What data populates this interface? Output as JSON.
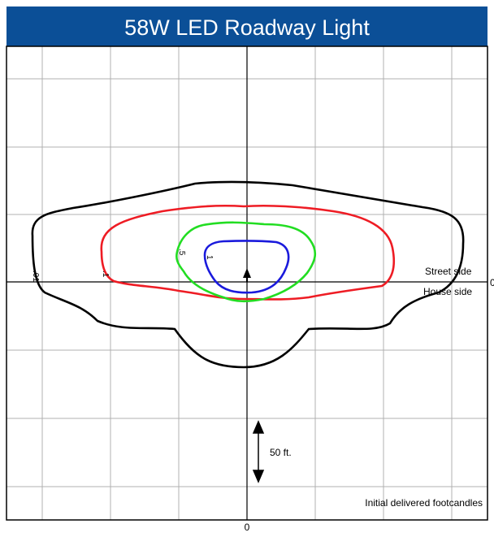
{
  "header": {
    "title": "58W LED Roadway Light"
  },
  "contours": [
    {
      "label": ".01",
      "color": "#000000"
    },
    {
      "label": ".1",
      "color": "#ee1c24"
    },
    {
      "label": ".5",
      "color": "#22dd22"
    },
    {
      "label": "1",
      "color": "#1a1adc"
    }
  ],
  "axes": {
    "x_origin": "0",
    "y_origin": "0"
  },
  "sides": {
    "street": "Street side",
    "house": "House side"
  },
  "scale": {
    "label": "50 ft."
  },
  "note": "Initial delivered footcandles"
}
